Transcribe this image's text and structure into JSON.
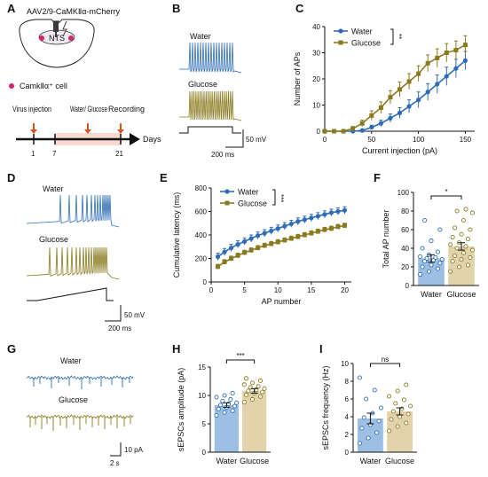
{
  "colors": {
    "water": "#2e6db5",
    "glucose": "#8a7a1f",
    "water_light": "#9dbfe3",
    "glucose_light": "#d8c9a6",
    "axis": "#111111",
    "timeline_fill": "#f7d9d0",
    "arrow": "#d9541c",
    "camk_dot": "#d6246e"
  },
  "panel_letters": [
    "A",
    "B",
    "C",
    "D",
    "E",
    "F",
    "G",
    "H",
    "I"
  ],
  "panel_a": {
    "virus_label": "AAV2/9-CaMKⅡα-mCherry",
    "region_label": "NTS",
    "legend_label": "CamkⅡα⁺ cell",
    "timeline_events": [
      "Virus injection",
      "Water/ Glucose",
      "Recording"
    ],
    "timeline_ticks": [
      "1",
      "7",
      "21"
    ],
    "timeline_unit": "Days"
  },
  "panel_b": {
    "trace_labels": [
      "Water",
      "Glucose"
    ],
    "scalebar_v": "50 mV",
    "scalebar_h": "200 ms"
  },
  "panel_d": {
    "trace_labels": [
      "Water",
      "Glucose"
    ],
    "scalebar_v": "50 mV",
    "scalebar_h": "200 ms"
  },
  "panel_g": {
    "trace_labels": [
      "Water",
      "Glucose"
    ],
    "scalebar_v": "10 pA",
    "scalebar_h": "2 s"
  },
  "chart_data": [
    {
      "id": "C",
      "type": "line",
      "xlabel": "Current injection (pA)",
      "ylabel": "Number of APs",
      "xlim": [
        0,
        160
      ],
      "ylim": [
        0,
        40
      ],
      "xticks": [
        0,
        50,
        100,
        150
      ],
      "yticks": [
        0,
        10,
        20,
        30,
        40
      ],
      "legend": [
        "Water",
        "Glucose"
      ],
      "legend_position": "top-left",
      "significance": "**",
      "x": [
        0,
        10,
        20,
        30,
        40,
        50,
        60,
        70,
        80,
        90,
        100,
        110,
        120,
        130,
        140,
        150
      ],
      "series": [
        {
          "name": "Water",
          "values": [
            0,
            0,
            0,
            0,
            0.3,
            1.5,
            3,
            5,
            7,
            9.5,
            12,
            15,
            18,
            21,
            24,
            27
          ],
          "error": [
            0,
            0,
            0,
            0,
            0.3,
            0.8,
            1.2,
            1.6,
            2,
            2.5,
            3,
            3.2,
            3.5,
            3.5,
            3.5,
            3.5
          ]
        },
        {
          "name": "Glucose",
          "values": [
            0,
            0,
            0,
            1,
            3,
            6,
            9,
            13,
            16,
            19,
            22,
            26,
            28,
            30,
            31,
            33
          ],
          "error": [
            0,
            0,
            0,
            0.8,
            1.2,
            1.8,
            2.2,
            2.5,
            2.8,
            3,
            3,
            3.2,
            3.5,
            3.5,
            3.5,
            3.5
          ]
        }
      ]
    },
    {
      "id": "E",
      "type": "line",
      "xlabel": "AP number",
      "ylabel": "Cumulative latency (ms)",
      "xlim": [
        0,
        21
      ],
      "ylim": [
        0,
        800
      ],
      "xticks": [
        0,
        5,
        10,
        15,
        20
      ],
      "yticks": [
        0,
        200,
        400,
        600,
        800
      ],
      "legend": [
        "Water",
        "Glucose"
      ],
      "legend_position": "top-left",
      "significance": "***",
      "x": [
        1,
        2,
        3,
        4,
        5,
        6,
        7,
        8,
        9,
        10,
        11,
        12,
        13,
        14,
        15,
        16,
        17,
        18,
        19,
        20
      ],
      "series": [
        {
          "name": "Water",
          "values": [
            215,
            255,
            290,
            320,
            345,
            370,
            395,
            415,
            435,
            455,
            475,
            495,
            515,
            530,
            545,
            560,
            575,
            590,
            600,
            610
          ],
          "error": [
            30,
            30,
            30,
            30,
            30,
            30,
            30,
            30,
            30,
            30,
            30,
            30,
            30,
            30,
            30,
            30,
            30,
            30,
            30,
            30
          ]
        },
        {
          "name": "Glucose",
          "values": [
            130,
            170,
            200,
            225,
            250,
            270,
            290,
            310,
            325,
            340,
            355,
            370,
            385,
            400,
            415,
            430,
            445,
            455,
            470,
            480
          ],
          "error": [
            20,
            20,
            20,
            20,
            20,
            20,
            20,
            20,
            20,
            20,
            20,
            20,
            20,
            20,
            20,
            20,
            20,
            20,
            20,
            20
          ]
        }
      ]
    },
    {
      "id": "F",
      "type": "bar",
      "categories": [
        "Water",
        "Glucose"
      ],
      "values": [
        29,
        42
      ],
      "error": [
        4,
        4
      ],
      "ylabel": "Total AP number",
      "ylim": [
        0,
        100
      ],
      "yticks": [
        0,
        20,
        40,
        60,
        80,
        100
      ],
      "significance": "*",
      "points": [
        [
          12,
          15,
          18,
          20,
          22,
          24,
          26,
          27,
          28,
          29,
          30,
          31,
          33,
          36,
          40,
          48,
          60,
          70
        ],
        [
          15,
          20,
          22,
          26,
          28,
          30,
          32,
          35,
          38,
          40,
          42,
          44,
          46,
          50,
          52,
          55,
          60,
          62,
          70,
          78,
          80,
          82
        ]
      ]
    },
    {
      "id": "H",
      "type": "bar",
      "categories": [
        "Water",
        "Glucose"
      ],
      "values": [
        8.3,
        10.8
      ],
      "error": [
        0.4,
        0.4
      ],
      "ylabel": "sEPSCs amplitude (pA)",
      "ylim": [
        0,
        15
      ],
      "yticks": [
        0,
        5,
        10,
        15
      ],
      "significance": "***",
      "points": [
        [
          6.5,
          7.0,
          7.3,
          7.6,
          7.9,
          8.1,
          8.3,
          8.5,
          8.7,
          9.0,
          9.3,
          9.7,
          10.0,
          10.4
        ],
        [
          8.8,
          9.3,
          9.8,
          10.1,
          10.4,
          10.6,
          10.8,
          11.0,
          11.2,
          11.4,
          11.6,
          11.9,
          12.2,
          12.6,
          13.0
        ]
      ]
    },
    {
      "id": "I",
      "type": "bar",
      "categories": [
        "Water",
        "Glucose"
      ],
      "values": [
        3.8,
        4.6
      ],
      "error": [
        0.6,
        0.4
      ],
      "ylabel": "sEPSCs frequency (Hz)",
      "ylim": [
        0,
        10
      ],
      "yticks": [
        0,
        2,
        4,
        6,
        8,
        10
      ],
      "significance": "ns",
      "points": [
        [
          1.0,
          1.6,
          2.2,
          2.7,
          3.1,
          3.5,
          3.9,
          4.4,
          5.0,
          6.0,
          7.0,
          8.4
        ],
        [
          2.4,
          2.9,
          3.3,
          3.7,
          4.0,
          4.3,
          4.6,
          4.9,
          5.2,
          5.5,
          5.9,
          6.3,
          6.9,
          7.6
        ]
      ]
    }
  ]
}
